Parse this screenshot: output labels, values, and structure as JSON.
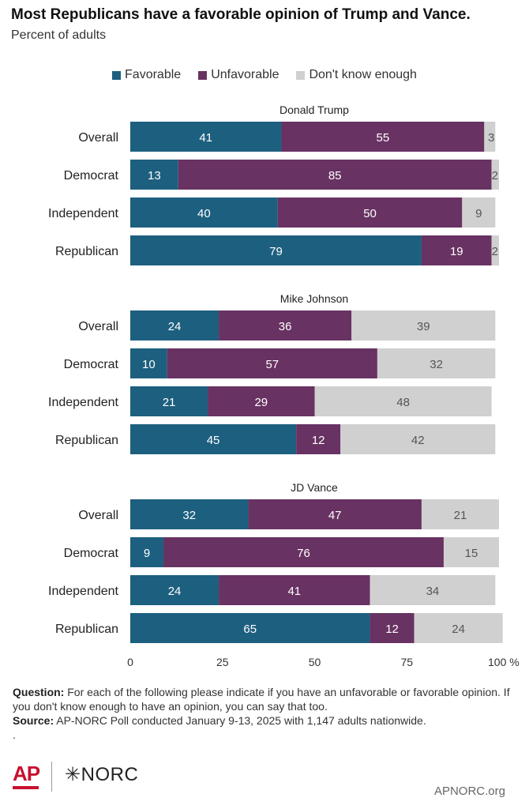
{
  "header": {
    "title": "Most Republicans have a favorable opinion of Trump and Vance.",
    "subtitle": "Percent of adults"
  },
  "legend": [
    {
      "label": "Favorable",
      "color": "#1d5f7f"
    },
    {
      "label": "Unfavorable",
      "color": "#683262"
    },
    {
      "label": "Don't know enough",
      "color": "#d0d0d0"
    }
  ],
  "chart_data": {
    "type": "bar",
    "orientation": "horizontal",
    "stacked": true,
    "xlim": [
      0,
      100
    ],
    "xticks": [
      "0",
      "25",
      "50",
      "75",
      "100 %"
    ],
    "categories": [
      "Overall",
      "Democrat",
      "Independent",
      "Republican"
    ],
    "series_names": [
      "Favorable",
      "Unfavorable",
      "Don't know enough"
    ],
    "colors": [
      "#1d5f7f",
      "#683262",
      "#d0d0d0"
    ],
    "panels": [
      {
        "title": "Donald Trump",
        "rows": [
          [
            41,
            55,
            3
          ],
          [
            13,
            85,
            2
          ],
          [
            40,
            50,
            9
          ],
          [
            79,
            19,
            2
          ]
        ]
      },
      {
        "title": "Mike Johnson",
        "rows": [
          [
            24,
            36,
            39
          ],
          [
            10,
            57,
            32
          ],
          [
            21,
            29,
            48
          ],
          [
            45,
            12,
            42
          ]
        ]
      },
      {
        "title": "JD Vance",
        "rows": [
          [
            32,
            47,
            21
          ],
          [
            9,
            76,
            15
          ],
          [
            24,
            41,
            34
          ],
          [
            65,
            12,
            24
          ]
        ]
      }
    ]
  },
  "notes": {
    "question_label": "Question:",
    "question_text": " For each of the following please indicate if you have an unfavorable or favorable opinion. If you don't know enough to have an opinion, you can say that too.",
    "source_label": "Source:",
    "source_text": " AP-NORC Poll conducted January 9-13, 2025 with 1,147 adults nationwide.",
    "trailing": "."
  },
  "footer": {
    "ap_logo": "AP",
    "norc_logo": "✳NORC",
    "site": "APNORC.org"
  }
}
